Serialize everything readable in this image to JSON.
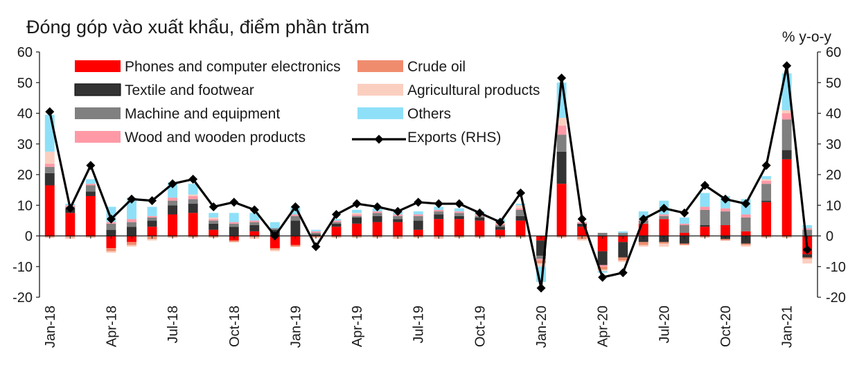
{
  "chart_data": {
    "type": "bar",
    "title": "Đóng góp vào xuất khẩu, điểm phần trăm",
    "right_axis_unit": "% y-o-y",
    "stacked": true,
    "ylim": [
      -20,
      60
    ],
    "y_ticks": [
      -20,
      -10,
      0,
      10,
      20,
      30,
      40,
      50,
      60
    ],
    "y2lim": [
      -20,
      60
    ],
    "y2_ticks": [
      -20,
      -10,
      0,
      10,
      20,
      30,
      40,
      50,
      60
    ],
    "grid": false,
    "legend_position": "top",
    "categories": [
      "Jan-18",
      "Feb-18",
      "Mar-18",
      "Apr-18",
      "May-18",
      "Jun-18",
      "Jul-18",
      "Aug-18",
      "Sep-18",
      "Oct-18",
      "Nov-18",
      "Dec-18",
      "Jan-19",
      "Feb-19",
      "Mar-19",
      "Apr-19",
      "May-19",
      "Jun-19",
      "Jul-19",
      "Aug-19",
      "Sep-19",
      "Oct-19",
      "Nov-19",
      "Dec-19",
      "Jan-20",
      "Feb-20",
      "Mar-20",
      "Apr-20",
      "May-20",
      "Jun-20",
      "Jul-20",
      "Aug-20",
      "Sep-20",
      "Oct-20",
      "Nov-20",
      "Dec-20",
      "Jan-21",
      "Feb-21"
    ],
    "x_tick_labels": [
      "Jan-18",
      "Apr-18",
      "Jul-18",
      "Oct-18",
      "Jan-19",
      "Apr-19",
      "Jul-19",
      "Oct-19",
      "Jan-20",
      "Apr-20",
      "Jul-20",
      "Oct-20",
      "Jan-21"
    ],
    "series": [
      {
        "name": "Phones and computer electronics",
        "color": "#ff0000",
        "kind": "bar",
        "values": [
          16.5,
          7.5,
          13,
          -4,
          -2,
          3,
          7,
          7.5,
          2,
          -1.5,
          1.5,
          -4,
          -3,
          0,
          3,
          4,
          4.5,
          4.5,
          2,
          5.5,
          5.5,
          5,
          2,
          5,
          -1.5,
          17,
          3,
          -5,
          -2,
          4,
          5.5,
          1,
          3,
          3.5,
          1.5,
          11,
          25,
          -6
        ]
      },
      {
        "name": "Textile and footwear",
        "color": "#333333",
        "kind": "bar",
        "values": [
          4,
          1.5,
          1.5,
          2,
          3,
          2,
          3,
          3,
          2,
          3,
          2,
          2,
          5,
          0.5,
          1,
          2,
          2,
          1,
          3,
          1.5,
          1,
          1,
          1,
          1.5,
          -5,
          10.5,
          1,
          -4.5,
          -5,
          -2,
          -2,
          -2.5,
          0.5,
          -1,
          -2.5,
          0.5,
          3,
          -1
        ]
      },
      {
        "name": "Machine and equipment",
        "color": "#808080",
        "kind": "bar",
        "values": [
          2,
          0.5,
          2,
          2,
          1.5,
          1,
          1.5,
          1.5,
          1,
          1,
          1,
          0.5,
          1.5,
          0.5,
          0.5,
          0.5,
          1,
          1,
          1.5,
          1,
          1,
          0.5,
          0.5,
          2,
          -1,
          5.5,
          0,
          1,
          1,
          1,
          1,
          2.5,
          5,
          4.5,
          4.5,
          5.5,
          10,
          2
        ]
      },
      {
        "name": "Wood and wooden products",
        "color": "#ff99a6",
        "kind": "bar",
        "values": [
          1,
          0.5,
          0.5,
          0.5,
          1,
          0.5,
          1,
          1,
          0.5,
          0.5,
          0.5,
          0,
          0.5,
          0.5,
          0.5,
          0.5,
          0.5,
          0.5,
          0.5,
          0.5,
          0.5,
          0.5,
          0.5,
          0.5,
          -0.5,
          3,
          0.5,
          -0.5,
          0,
          0.5,
          0.5,
          0.5,
          1,
          1,
          1,
          1,
          2,
          0.5
        ]
      },
      {
        "name": "Crude oil",
        "color": "#f08c6e",
        "kind": "bar",
        "values": [
          -0.5,
          -0.5,
          -0.5,
          -1,
          -1,
          -1,
          -0.5,
          -0.5,
          -0.5,
          -0.5,
          -0.5,
          -0.5,
          -0.5,
          -0.5,
          -0.5,
          -0.5,
          -0.5,
          -0.5,
          -0.5,
          -0.5,
          -0.5,
          -0.5,
          -0.5,
          -0.5,
          -1,
          -0.5,
          -1,
          -1,
          -1,
          -1,
          -0.5,
          -0.5,
          -0.5,
          -0.5,
          -0.5,
          -0.5,
          -0.5,
          -0.5
        ]
      },
      {
        "name": "Agricultural products",
        "color": "#fbcfc0",
        "kind": "bar",
        "values": [
          4,
          -0.5,
          0,
          -0.5,
          -0.5,
          -0.5,
          0,
          0.5,
          0.5,
          0,
          -0.5,
          -0.5,
          0,
          0,
          0,
          0.5,
          0,
          -0.5,
          0,
          -0.5,
          0,
          0,
          0.5,
          1,
          -1,
          2.5,
          -0.5,
          -0.5,
          -0.5,
          -0.5,
          -1,
          0,
          0,
          0,
          -0.5,
          0.5,
          1,
          -1.5
        ]
      },
      {
        "name": "Others",
        "color": "#8ee0f8",
        "kind": "bar",
        "values": [
          12,
          0.5,
          1.5,
          5,
          7,
          3,
          5,
          3.5,
          1.5,
          3,
          2.5,
          2,
          2.5,
          0.5,
          0.5,
          1,
          1,
          1,
          1,
          1,
          1,
          1,
          1,
          0.5,
          -5,
          11.5,
          0,
          -0.5,
          0.5,
          2.5,
          4.5,
          2,
          4.5,
          4,
          5,
          1,
          12,
          1
        ]
      },
      {
        "name": "Exports (RHS)",
        "color": "#000000",
        "kind": "line",
        "values": [
          40.5,
          9,
          23,
          5.5,
          12,
          11.5,
          17,
          18.5,
          9.5,
          11,
          8.5,
          0,
          9.5,
          -3.5,
          7,
          10.5,
          9.5,
          8,
          11,
          10.5,
          10.5,
          7.5,
          4.5,
          14,
          -17,
          51.5,
          5.5,
          -13.5,
          -12,
          5.5,
          9,
          7.5,
          16.5,
          12,
          10.5,
          23,
          55.5,
          -4.5
        ]
      }
    ]
  }
}
